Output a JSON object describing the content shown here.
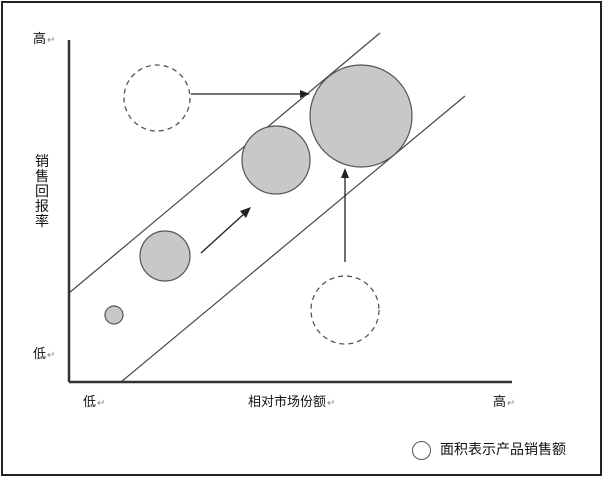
{
  "diagram": {
    "y_axis": {
      "label": "销售回报率",
      "high": "高",
      "low": "低",
      "return_mark": "↵"
    },
    "x_axis": {
      "label": "相对市场份额",
      "low": "低",
      "high": "高",
      "return_mark": "↵"
    },
    "legend": {
      "text": "面积表示产品销售额"
    },
    "colors": {
      "bubble_fill": "#c8c8c8",
      "stroke": "#555555",
      "axis": "#333333",
      "frame": "#222222"
    }
  }
}
